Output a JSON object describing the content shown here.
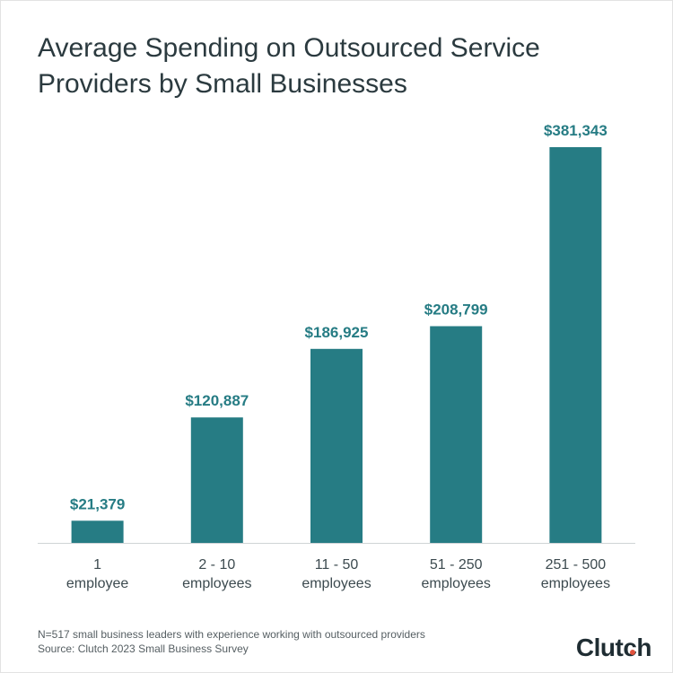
{
  "title": "Average Spending on Outsourced Service Providers by Small Businesses",
  "chart_data": {
    "type": "bar",
    "categories": [
      [
        "1",
        "employee"
      ],
      [
        "2 - 10",
        "employees"
      ],
      [
        "11 - 50",
        "employees"
      ],
      [
        "51 - 250",
        "employees"
      ],
      [
        "251 - 500",
        "employees"
      ]
    ],
    "values": [
      21379,
      120887,
      186925,
      208799,
      381343
    ],
    "value_labels": [
      "$21,379",
      "$120,887",
      "$186,925",
      "$208,799",
      "$381,343"
    ],
    "ylim": [
      0,
      381343
    ],
    "grid": false,
    "legend": "none"
  },
  "footnote": {
    "line1": "N=517 small business leaders with experience working with outsourced providers",
    "line2": "Source: Clutch 2023 Small Business Survey"
  },
  "logo": {
    "text_main": "Clutch"
  },
  "colors": {
    "bar": "#267c84",
    "value_label": "#267c84",
    "category_label": "#3c4a4f",
    "axis": "#cfd4d6",
    "logo_dot": "#e1523d"
  }
}
